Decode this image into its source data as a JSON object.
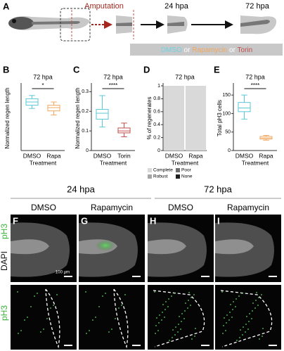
{
  "panel_a": {
    "label": "A",
    "amputation": "Amputation",
    "stages": [
      "24 hpa",
      "72 hpa"
    ],
    "treatment_legend": [
      {
        "text": "DMSO",
        "color": "#6fd3e3"
      },
      {
        "text": " or ",
        "color": "#ffffff"
      },
      {
        "text": "Rapamycin",
        "color": "#f0a860"
      },
      {
        "text": " or ",
        "color": "#ffffff"
      },
      {
        "text": "Torin",
        "color": "#c0504d"
      }
    ]
  },
  "chart_data": [
    {
      "type": "box",
      "label": "B",
      "title": "72 hpa",
      "ylabel": "Normalized regen length",
      "xlabel": "Treatment",
      "categories": [
        "DMSO",
        "Rapa"
      ],
      "ylim": [
        0,
        0.4
      ],
      "significance": "*",
      "boxes": [
        {
          "whislo": 0.26,
          "q1": 0.28,
          "median": 0.3,
          "q3": 0.32,
          "whishi": 0.34,
          "color": "#5bc8d8"
        },
        {
          "whislo": 0.22,
          "q1": 0.245,
          "median": 0.265,
          "q3": 0.28,
          "whishi": 0.3,
          "color": "#f0a860"
        }
      ]
    },
    {
      "type": "box",
      "label": "C",
      "title": "72 hpa",
      "ylabel": "Normalized regen length",
      "xlabel": "Treatment",
      "categories": [
        "DMSO",
        "Torin"
      ],
      "ylim": [
        0,
        0.33
      ],
      "yticks": [
        0,
        0.1,
        0.2,
        0.3
      ],
      "significance": "****",
      "boxes": [
        {
          "whislo": 0.12,
          "q1": 0.16,
          "median": 0.19,
          "q3": 0.21,
          "whishi": 0.28,
          "color": "#5bc8d8"
        },
        {
          "whislo": 0.07,
          "q1": 0.09,
          "median": 0.1,
          "q3": 0.115,
          "whishi": 0.14,
          "color": "#c0504d"
        }
      ]
    },
    {
      "type": "stacked_bar",
      "label": "D",
      "title": "72 hpa",
      "ylabel": "% of regenerates",
      "xlabel": "Treatment",
      "categories": [
        "DMSO",
        "Rapa"
      ],
      "ylim": [
        0,
        1
      ],
      "yticks": [
        0,
        0.2,
        0.4,
        0.6,
        0.8,
        1
      ],
      "series": [
        {
          "name": "Complete",
          "color": "#d9d9d9",
          "values": [
            1,
            1
          ]
        },
        {
          "name": "Poor",
          "color": "#6e6e6e",
          "values": [
            0,
            0
          ]
        },
        {
          "name": "Robust",
          "color": "#a6a6a6",
          "values": [
            0,
            0
          ]
        },
        {
          "name": "None",
          "color": "#1e1e1e",
          "values": [
            0,
            0
          ]
        }
      ]
    },
    {
      "type": "box",
      "label": "E",
      "title": "72 hpa",
      "ylabel": "Total pH3 cells",
      "xlabel": "Treatment",
      "categories": [
        "DMSO",
        "Rapa"
      ],
      "ylim": [
        0,
        175
      ],
      "yticks": [
        0,
        50,
        100,
        150
      ],
      "significance": "****",
      "boxes": [
        {
          "whislo": 85,
          "q1": 105,
          "median": 115,
          "q3": 130,
          "whishi": 150,
          "color": "#5bc8d8"
        },
        {
          "whislo": 28,
          "q1": 31,
          "median": 34,
          "q3": 38,
          "whishi": 41,
          "color": "#f0a860"
        }
      ]
    }
  ],
  "imaging": {
    "stages": [
      "24 hpa",
      "72 hpa"
    ],
    "panels": [
      {
        "label": "F",
        "title": "DMSO"
      },
      {
        "label": "G",
        "title": "Rapamycin"
      },
      {
        "label": "H",
        "title": "DMSO"
      },
      {
        "label": "I",
        "title": "Rapamycin"
      }
    ],
    "channels": [
      "pH3",
      "DAPI",
      "pH3"
    ],
    "scale_bar": "100 µm"
  }
}
